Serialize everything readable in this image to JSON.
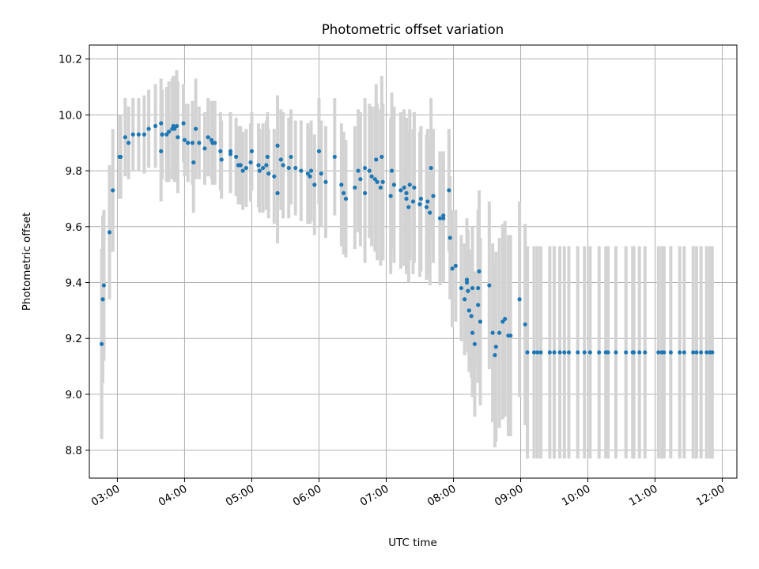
{
  "chart_data": {
    "type": "scatter",
    "title": "Photometric offset variation",
    "xlabel": "UTC time",
    "ylabel": "Photometric offset",
    "x_ticks": [
      "03:00",
      "04:00",
      "05:00",
      "06:00",
      "07:00",
      "08:00",
      "09:00",
      "10:00",
      "11:00",
      "12:00"
    ],
    "y_ticks": [
      "8.8",
      "9.0",
      "9.2",
      "9.4",
      "9.6",
      "9.8",
      "10.0",
      "10.2"
    ],
    "xlim": [
      "02:35",
      "12:13"
    ],
    "ylim": [
      8.7,
      10.25
    ],
    "grid": true,
    "marker_color": "#1f77b4",
    "errorbar_color": "#d3d3d3",
    "series": [
      {
        "x": [
          "02:46",
          "02:47",
          "02:48",
          "02:53",
          "02:56",
          "03:02",
          "03:03",
          "03:07",
          "03:10",
          "03:14",
          "03:19",
          "03:24",
          "03:28",
          "03:34",
          "03:39",
          "03:39",
          "03:40",
          "03:40",
          "03:44",
          "03:46",
          "03:49",
          "03:50",
          "03:51",
          "03:53",
          "03:54",
          "03:59",
          "04:00",
          "04:03",
          "04:07",
          "04:08",
          "04:10",
          "04:13",
          "04:18",
          "04:21",
          "04:24",
          "04:25",
          "04:27",
          "04:32",
          "04:33",
          "04:41",
          "04:41",
          "04:46",
          "04:48",
          "04:50",
          "04:52",
          "04:55",
          "04:59",
          "05:00",
          "05:06",
          "05:07",
          "05:10",
          "05:13",
          "05:14",
          "05:15",
          "05:20",
          "05:23",
          "05:23",
          "05:26",
          "05:28",
          "05:33",
          "05:35",
          "05:39",
          "05:44",
          "05:50",
          "05:52",
          "05:53",
          "05:56",
          "06:00",
          "06:02",
          "06:06",
          "06:14",
          "06:20",
          "06:22",
          "06:24",
          "06:32",
          "06:35",
          "06:37",
          "06:41",
          "06:41",
          "06:45",
          "06:47",
          "06:50",
          "06:51",
          "06:52",
          "06:55",
          "06:56",
          "06:57",
          "07:04",
          "07:05",
          "07:07",
          "07:13",
          "07:16",
          "07:18",
          "07:18",
          "07:20",
          "07:21",
          "07:24",
          "07:25",
          "07:30",
          "07:31",
          "07:36",
          "07:37",
          "07:39",
          "07:40",
          "07:42",
          "07:48",
          "07:51",
          "07:51",
          "07:56",
          "07:57",
          "07:59",
          "08:02",
          "08:07",
          "08:10",
          "08:12",
          "08:12",
          "08:13",
          "08:14",
          "08:16",
          "08:17",
          "08:17",
          "08:19",
          "08:22",
          "08:22",
          "08:23",
          "08:24",
          "08:32",
          "08:35",
          "08:37",
          "08:38",
          "08:41",
          "08:44",
          "08:46",
          "08:49",
          "08:51",
          "08:59",
          "09:04",
          "09:06",
          "09:12",
          "09:15",
          "09:18",
          "09:26",
          "09:30",
          "09:35",
          "09:39",
          "09:43",
          "09:51",
          "09:57",
          "10:02",
          "10:10",
          "10:16",
          "10:18",
          "10:25",
          "10:34",
          "10:40",
          "10:41",
          "10:46",
          "10:51",
          "11:03",
          "11:06",
          "11:08",
          "11:14",
          "11:22",
          "11:26",
          "11:34",
          "11:37",
          "11:41",
          "11:46",
          "11:49",
          "11:51"
        ],
        "y": [
          9.18,
          9.34,
          9.39,
          9.58,
          9.73,
          9.85,
          9.85,
          9.92,
          9.9,
          9.93,
          9.93,
          9.93,
          9.95,
          9.96,
          9.97,
          9.87,
          9.93,
          9.93,
          9.93,
          9.94,
          9.95,
          9.96,
          9.95,
          9.96,
          9.92,
          9.97,
          9.91,
          9.9,
          9.9,
          9.83,
          9.95,
          9.9,
          9.88,
          9.92,
          9.91,
          9.9,
          9.9,
          9.87,
          9.84,
          9.87,
          9.86,
          9.85,
          9.82,
          9.82,
          9.8,
          9.81,
          9.83,
          9.87,
          9.82,
          9.8,
          9.81,
          9.82,
          9.85,
          9.79,
          9.78,
          9.89,
          9.72,
          9.84,
          9.82,
          9.81,
          9.85,
          9.81,
          9.8,
          9.79,
          9.78,
          9.8,
          9.75,
          9.87,
          9.79,
          9.76,
          9.85,
          9.75,
          9.72,
          9.7,
          9.74,
          9.8,
          9.77,
          9.81,
          9.72,
          9.8,
          9.78,
          9.77,
          9.84,
          9.76,
          9.74,
          9.85,
          9.76,
          9.71,
          9.8,
          9.75,
          9.73,
          9.74,
          9.72,
          9.7,
          9.67,
          9.75,
          9.69,
          9.74,
          9.68,
          9.7,
          9.67,
          9.69,
          9.65,
          9.81,
          9.71,
          9.63,
          9.64,
          9.63,
          9.73,
          9.56,
          9.45,
          9.46,
          9.38,
          9.34,
          9.4,
          9.41,
          9.37,
          9.3,
          9.28,
          9.38,
          9.22,
          9.18,
          9.32,
          9.38,
          9.44,
          9.26,
          9.39,
          9.22,
          9.14,
          9.17,
          9.22,
          9.26,
          9.27,
          9.21,
          9.21,
          9.34,
          9.25,
          9.15,
          9.15,
          9.15,
          9.15,
          9.15,
          9.15,
          9.15,
          9.15,
          9.15,
          9.15,
          9.15,
          9.15,
          9.15,
          9.15,
          9.15,
          9.15,
          9.15,
          9.15,
          9.15,
          9.15,
          9.15,
          9.15,
          9.15,
          9.15,
          9.15,
          9.15,
          9.15,
          9.15,
          9.15,
          9.15,
          9.15,
          9.15,
          9.15
        ],
        "yerr": [
          0.34,
          0.3,
          0.27,
          0.24,
          0.22,
          0.15,
          0.15,
          0.14,
          0.13,
          0.13,
          0.13,
          0.14,
          0.14,
          0.15,
          0.16,
          0.18,
          0.16,
          0.16,
          0.17,
          0.18,
          0.18,
          0.18,
          0.19,
          0.2,
          0.2,
          0.14,
          0.13,
          0.14,
          0.15,
          0.18,
          0.18,
          0.13,
          0.13,
          0.14,
          0.14,
          0.15,
          0.15,
          0.14,
          0.14,
          0.14,
          0.14,
          0.14,
          0.14,
          0.14,
          0.14,
          0.14,
          0.14,
          0.14,
          0.15,
          0.15,
          0.16,
          0.16,
          0.16,
          0.16,
          0.17,
          0.18,
          0.18,
          0.18,
          0.19,
          0.18,
          0.17,
          0.17,
          0.18,
          0.18,
          0.17,
          0.18,
          0.18,
          0.19,
          0.19,
          0.2,
          0.21,
          0.22,
          0.22,
          0.21,
          0.22,
          0.22,
          0.24,
          0.25,
          0.25,
          0.24,
          0.25,
          0.26,
          0.27,
          0.28,
          0.28,
          0.29,
          0.28,
          0.28,
          0.28,
          0.28,
          0.28,
          0.28,
          0.27,
          0.27,
          0.27,
          0.27,
          0.26,
          0.27,
          0.26,
          0.26,
          0.26,
          0.26,
          0.26,
          0.25,
          0.24,
          0.24,
          0.23,
          0.23,
          0.22,
          0.22,
          0.21,
          0.2,
          0.19,
          0.2,
          0.2,
          0.22,
          0.22,
          0.22,
          0.22,
          0.22,
          0.23,
          0.26,
          0.28,
          0.28,
          0.29,
          0.3,
          0.3,
          0.32,
          0.33,
          0.34,
          0.34,
          0.35,
          0.35,
          0.36,
          0.36,
          0.35,
          0.36,
          0.38,
          0.38,
          0.38,
          0.38,
          0.38,
          0.38,
          0.38,
          0.38,
          0.38,
          0.38,
          0.38,
          0.38,
          0.38,
          0.38,
          0.38,
          0.38,
          0.38,
          0.38,
          0.38,
          0.38,
          0.38,
          0.38,
          0.38,
          0.38,
          0.38,
          0.38,
          0.38,
          0.38,
          0.38,
          0.38,
          0.38,
          0.38,
          0.38
        ]
      }
    ]
  }
}
